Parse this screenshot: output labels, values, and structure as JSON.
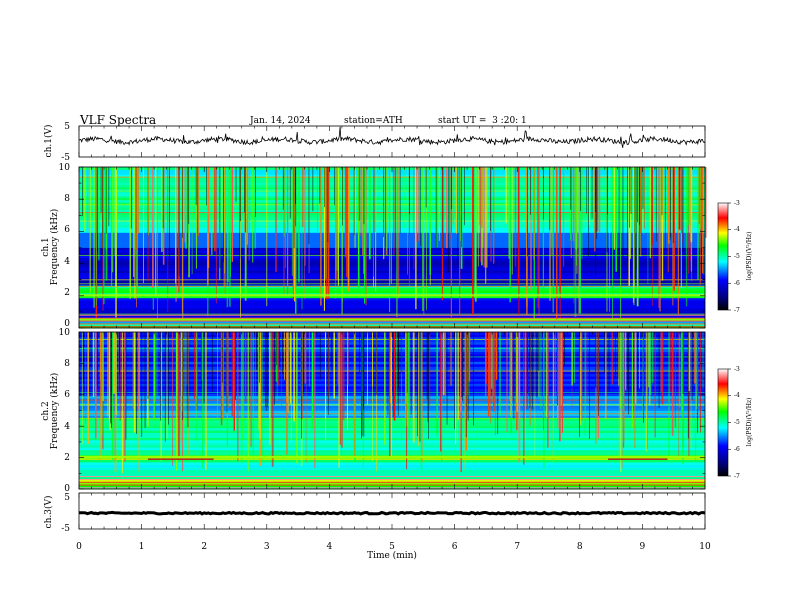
{
  "header": {
    "title": "VLF Spectra",
    "date": "Jan. 14, 2024",
    "station": "station=ATH",
    "start": "start UT =  3 :20: 1"
  },
  "colors": {
    "colormap": [
      "#000000",
      "#00007f",
      "#0000ff",
      "#00ffff",
      "#00ff00",
      "#ffff00",
      "#ff0000",
      "#ffffff"
    ],
    "trace": "#000000",
    "axis": "#000000"
  },
  "chart_data": [
    {
      "type": "line",
      "panel": "ch1-waveform",
      "ylabel": "ch.1(V)",
      "ylim": [
        -5,
        5
      ],
      "yticks": [
        "5",
        "-5"
      ],
      "xlim": [
        0,
        10
      ]
    },
    {
      "type": "heatmap",
      "panel": "ch1-spectrogram",
      "ylabel_top": "ch.1",
      "ylabel": "Frequency (kHz)",
      "ylim": [
        0,
        10
      ],
      "yticks": [
        "0",
        "2",
        "4",
        "6",
        "8",
        "10"
      ],
      "xlim": [
        0,
        10
      ],
      "colorbar": {
        "label": "log(PSD)(V²/Hz)",
        "range": [
          -7,
          -3
        ],
        "ticks": [
          "-3",
          "-4",
          "-5",
          "-6",
          "-7"
        ]
      }
    },
    {
      "type": "heatmap",
      "panel": "ch2-spectrogram",
      "ylabel_top": "ch.2",
      "ylabel": "Frequency (kHz)",
      "ylim": [
        0,
        10
      ],
      "yticks": [
        "0",
        "2",
        "4",
        "6",
        "8",
        "10"
      ],
      "xlim": [
        0,
        10
      ],
      "colorbar": {
        "label": "log(PSD)(V²/Hz)",
        "range": [
          -7,
          -3
        ],
        "ticks": [
          "-3",
          "-4",
          "-5",
          "-6",
          "-7"
        ]
      }
    },
    {
      "type": "line",
      "panel": "ch3-waveform",
      "ylabel": "ch.3(V)",
      "ylim": [
        -5,
        5
      ],
      "yticks": [
        "5",
        "-5"
      ],
      "xlim": [
        0,
        10
      ],
      "xlabel": "Time (min)",
      "xticks": [
        "0",
        "1",
        "2",
        "3",
        "4",
        "5",
        "6",
        "7",
        "8",
        "9",
        "10"
      ]
    }
  ]
}
